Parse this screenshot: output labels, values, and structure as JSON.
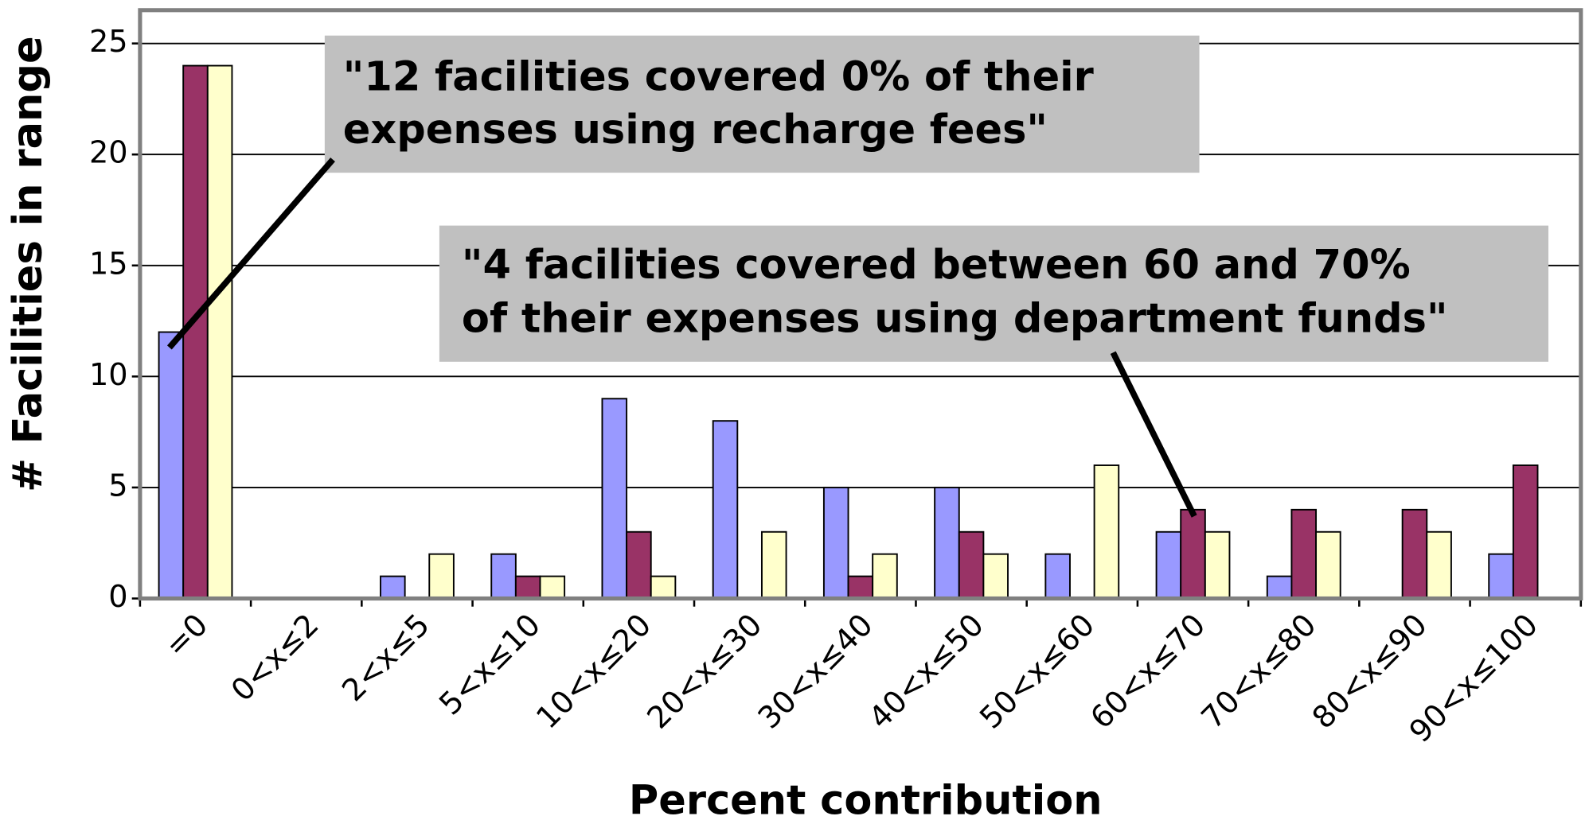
{
  "chart_data": {
    "type": "bar",
    "categories": [
      "=0",
      "0<x≤2",
      "2<x≤5",
      "5<x≤10",
      "10<x≤20",
      "20<x≤30",
      "30<x≤40",
      "40<x≤50",
      "50<x≤60",
      "60<x≤70",
      "70<x≤80",
      "80<x≤90",
      "90<x≤100"
    ],
    "series": [
      {
        "color": "#9999ff",
        "values": [
          12,
          0,
          1,
          2,
          9,
          8,
          5,
          5,
          2,
          3,
          1,
          0,
          2
        ]
      },
      {
        "color": "#993366",
        "values": [
          24,
          0,
          0,
          1,
          3,
          0,
          1,
          3,
          0,
          4,
          4,
          4,
          6
        ]
      },
      {
        "color": "#ffffcc",
        "values": [
          24,
          0,
          2,
          1,
          1,
          3,
          2,
          2,
          6,
          3,
          3,
          3,
          0
        ]
      }
    ],
    "x_label": "Percent contribution",
    "y_label": "# Facilities in range",
    "ylim": [
      0,
      26.5
    ],
    "yticks": [
      0,
      5,
      10,
      15,
      20,
      25
    ],
    "grid": true,
    "annotations": [
      {
        "lines": [
          "\"12 facilities covered 0% of their",
          "expenses using recharge fees\""
        ]
      },
      {
        "lines": [
          "\"4 facilities covered between 60 and 70%",
          "of their expenses using department funds\""
        ]
      }
    ]
  }
}
